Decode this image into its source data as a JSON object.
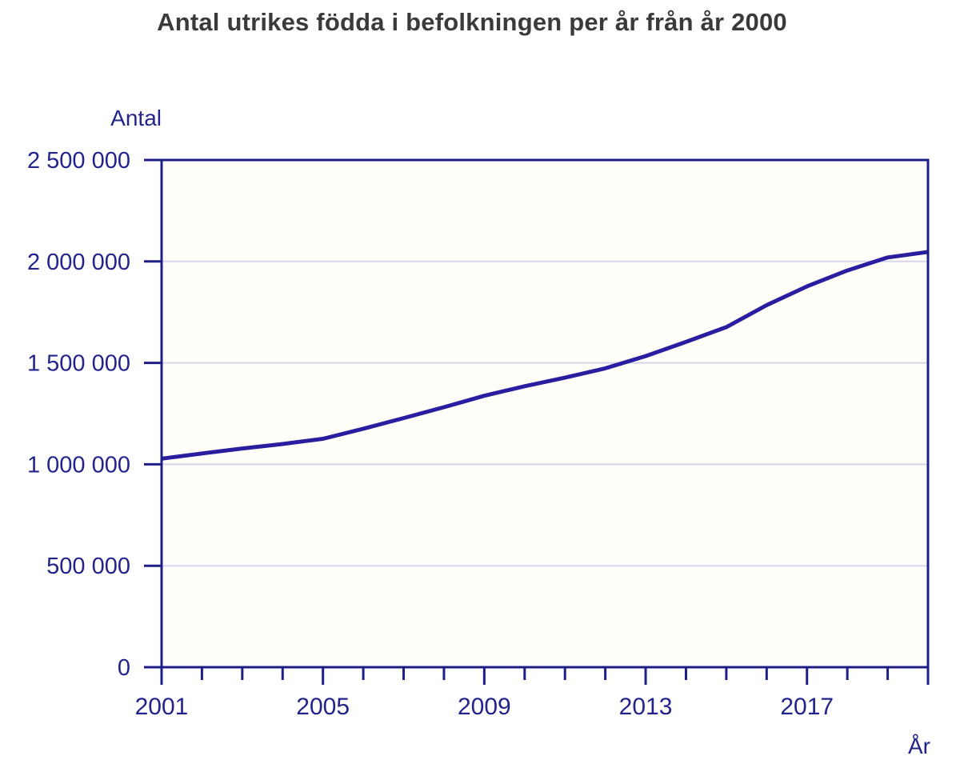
{
  "title": "Antal utrikes födda i befolkningen per år från år 2000",
  "axes": {
    "y_title": "Antal",
    "x_title": "År",
    "y_tick_labels": [
      "0",
      "500 000",
      "1 000 000",
      "1 500 000",
      "2 000 000",
      "2 500 000"
    ],
    "x_tick_labels": [
      "2001",
      "2005",
      "2009",
      "2013",
      "2017"
    ]
  },
  "colors": {
    "axis": "#1e1e87",
    "tick_text": "#23238c",
    "title_text": "#3a3a3a",
    "line": "#2a1ea0",
    "grid": "#d5d5eb",
    "plot_bg": "#fffef9",
    "page_bg": "#ffffff"
  },
  "chart_data": {
    "type": "line",
    "title": "Antal utrikes födda i befolkningen per år från år 2000",
    "xlabel": "År",
    "ylabel": "Antal",
    "x": [
      2001,
      2002,
      2003,
      2004,
      2005,
      2006,
      2007,
      2008,
      2009,
      2010,
      2011,
      2012,
      2013,
      2014,
      2015,
      2016,
      2017,
      2018,
      2019,
      2020
    ],
    "series": [
      {
        "name": "Utrikes födda",
        "values": [
          1028025,
          1053463,
          1078075,
          1100262,
          1125790,
          1175200,
          1227770,
          1281581,
          1337965,
          1384929,
          1427296,
          1473256,
          1533493,
          1603551,
          1676264,
          1784497,
          1877050,
          1955569,
          2019733,
          2046731
        ]
      }
    ],
    "xlim": [
      2001,
      2020
    ],
    "ylim": [
      0,
      2500000
    ],
    "y_ticks": [
      0,
      500000,
      1000000,
      1500000,
      2000000,
      2500000
    ],
    "x_major_ticks": [
      2001,
      2005,
      2009,
      2013,
      2017
    ],
    "x_minor_tick_step": 1,
    "grid": "horizontal",
    "legend": "none"
  }
}
